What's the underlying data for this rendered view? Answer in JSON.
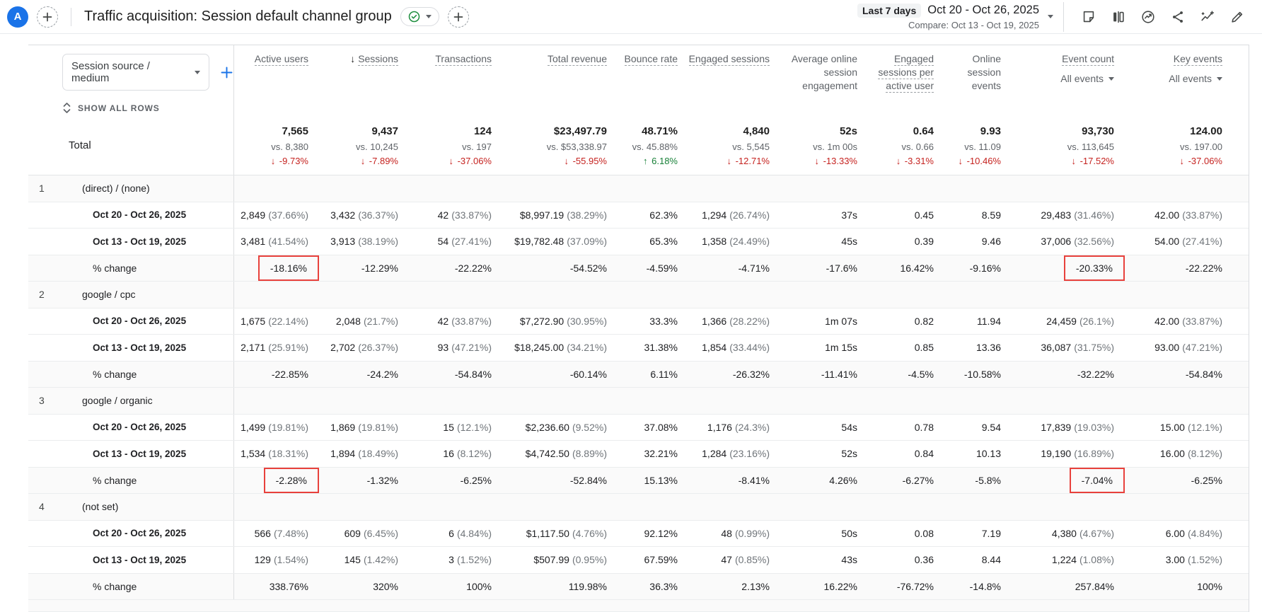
{
  "header": {
    "avatar_letter": "A",
    "title": "Traffic acquisition: Session default channel group",
    "date_range": {
      "preset": "Last 7 days",
      "primary": "Oct 20 - Oct 26, 2025",
      "compare": "Compare: Oct 13 - Oct 19, 2025"
    },
    "icons": [
      "note-icon",
      "comparisons-icon",
      "insights-icon",
      "share-icon",
      "sparkline-icon",
      "edit-icon"
    ]
  },
  "colors": {
    "accent_blue": "#1a73e8",
    "negative_red": "#c5221f",
    "positive_green": "#188038",
    "annotation_red": "#e8413c"
  },
  "controls": {
    "dimension_selector": "Session source / medium",
    "show_all_rows": "SHOW ALL ROWS"
  },
  "table": {
    "columns": [
      {
        "label": "Active users"
      },
      {
        "label": "Sessions",
        "sort": "desc"
      },
      {
        "label": "Transactions"
      },
      {
        "label": "Total revenue"
      },
      {
        "label": "Bounce rate"
      },
      {
        "label": "Engaged sessions"
      },
      {
        "label": "Average online session engagement",
        "underline": false
      },
      {
        "label": "Engaged sessions per active user"
      },
      {
        "label": "Online session events",
        "underline": false
      },
      {
        "label": "Event count",
        "filter": "All events"
      },
      {
        "label": "Key events",
        "filter": "All events"
      }
    ],
    "total_row": {
      "label": "Total",
      "metrics": [
        {
          "value": "7,565",
          "vs": "vs. 8,380",
          "change": "-9.73%",
          "trend": "down"
        },
        {
          "value": "9,437",
          "vs": "vs. 10,245",
          "change": "-7.89%",
          "trend": "down"
        },
        {
          "value": "124",
          "vs": "vs. 197",
          "change": "-37.06%",
          "trend": "down"
        },
        {
          "value": "$23,497.79",
          "vs": "vs. $53,338.97",
          "change": "-55.95%",
          "trend": "down"
        },
        {
          "value": "48.71%",
          "vs": "vs. 45.88%",
          "change": "6.18%",
          "trend": "up"
        },
        {
          "value": "4,840",
          "vs": "vs. 5,545",
          "change": "-12.71%",
          "trend": "down"
        },
        {
          "value": "52s",
          "vs": "vs. 1m 00s",
          "change": "-13.33%",
          "trend": "down"
        },
        {
          "value": "0.64",
          "vs": "vs. 0.66",
          "change": "-3.31%",
          "trend": "down"
        },
        {
          "value": "9.93",
          "vs": "vs. 11.09",
          "change": "-10.46%",
          "trend": "down"
        },
        {
          "value": "93,730",
          "vs": "vs. 113,645",
          "change": "-17.52%",
          "trend": "down"
        },
        {
          "value": "124.00",
          "vs": "vs. 197.00",
          "change": "-37.06%",
          "trend": "down"
        }
      ]
    },
    "groups": [
      {
        "index": "1",
        "name": "(direct) / (none)",
        "rows": [
          {
            "type": "period",
            "label": "Oct 20 - Oct 26, 2025",
            "values": [
              "2,849 (37.66%)",
              "3,432 (36.37%)",
              "42 (33.87%)",
              "$8,997.19 (38.29%)",
              "62.3%",
              "1,294 (26.74%)",
              "37s",
              "0.45",
              "8.59",
              "29,483 (31.46%)",
              "42.00 (33.87%)"
            ]
          },
          {
            "type": "period",
            "label": "Oct 13 - Oct 19, 2025",
            "values": [
              "3,481 (41.54%)",
              "3,913 (38.19%)",
              "54 (27.41%)",
              "$19,782.48 (37.09%)",
              "65.3%",
              "1,358 (24.49%)",
              "45s",
              "0.39",
              "9.46",
              "37,006 (32.56%)",
              "54.00 (27.41%)"
            ]
          },
          {
            "type": "change",
            "label": "% change",
            "values": [
              "-18.16%",
              "-12.29%",
              "-22.22%",
              "-54.52%",
              "-4.59%",
              "-4.71%",
              "-17.6%",
              "16.42%",
              "-9.16%",
              "-20.33%",
              "-22.22%"
            ],
            "highlighted": [
              0,
              9
            ]
          }
        ]
      },
      {
        "index": "2",
        "name": "google / cpc",
        "rows": [
          {
            "type": "period",
            "label": "Oct 20 - Oct 26, 2025",
            "values": [
              "1,675 (22.14%)",
              "2,048 (21.7%)",
              "42 (33.87%)",
              "$7,272.90 (30.95%)",
              "33.3%",
              "1,366 (28.22%)",
              "1m 07s",
              "0.82",
              "11.94",
              "24,459 (26.1%)",
              "42.00 (33.87%)"
            ]
          },
          {
            "type": "period",
            "label": "Oct 13 - Oct 19, 2025",
            "values": [
              "2,171 (25.91%)",
              "2,702 (26.37%)",
              "93 (47.21%)",
              "$18,245.00 (34.21%)",
              "31.38%",
              "1,854 (33.44%)",
              "1m 15s",
              "0.85",
              "13.36",
              "36,087 (31.75%)",
              "93.00 (47.21%)"
            ]
          },
          {
            "type": "change",
            "label": "% change",
            "values": [
              "-22.85%",
              "-24.2%",
              "-54.84%",
              "-60.14%",
              "6.11%",
              "-26.32%",
              "-11.41%",
              "-4.5%",
              "-10.58%",
              "-32.22%",
              "-54.84%"
            ],
            "highlighted": []
          }
        ]
      },
      {
        "index": "3",
        "name": "google / organic",
        "rows": [
          {
            "type": "period",
            "label": "Oct 20 - Oct 26, 2025",
            "values": [
              "1,499 (19.81%)",
              "1,869 (19.81%)",
              "15 (12.1%)",
              "$2,236.60 (9.52%)",
              "37.08%",
              "1,176 (24.3%)",
              "54s",
              "0.78",
              "9.54",
              "17,839 (19.03%)",
              "15.00 (12.1%)"
            ]
          },
          {
            "type": "period",
            "label": "Oct 13 - Oct 19, 2025",
            "values": [
              "1,534 (18.31%)",
              "1,894 (18.49%)",
              "16 (8.12%)",
              "$4,742.50 (8.89%)",
              "32.21%",
              "1,284 (23.16%)",
              "52s",
              "0.84",
              "10.13",
              "19,190 (16.89%)",
              "16.00 (8.12%)"
            ]
          },
          {
            "type": "change",
            "label": "% change",
            "values": [
              "-2.28%",
              "-1.32%",
              "-6.25%",
              "-52.84%",
              "15.13%",
              "-8.41%",
              "4.26%",
              "-6.27%",
              "-5.8%",
              "-7.04%",
              "-6.25%"
            ],
            "highlighted": [
              0,
              9
            ]
          }
        ]
      },
      {
        "index": "4",
        "name": "(not set)",
        "rows": [
          {
            "type": "period",
            "label": "Oct 20 - Oct 26, 2025",
            "values": [
              "566 (7.48%)",
              "609 (6.45%)",
              "6 (4.84%)",
              "$1,117.50 (4.76%)",
              "92.12%",
              "48 (0.99%)",
              "50s",
              "0.08",
              "7.19",
              "4,380 (4.67%)",
              "6.00 (4.84%)"
            ]
          },
          {
            "type": "period",
            "label": "Oct 13 - Oct 19, 2025",
            "values": [
              "129 (1.54%)",
              "145 (1.42%)",
              "3 (1.52%)",
              "$507.99 (0.95%)",
              "67.59%",
              "47 (0.85%)",
              "43s",
              "0.36",
              "8.44",
              "1,224 (1.08%)",
              "3.00 (1.52%)"
            ]
          },
          {
            "type": "change",
            "label": "% change",
            "values": [
              "338.76%",
              "320%",
              "100%",
              "119.98%",
              "36.3%",
              "2.13%",
              "16.22%",
              "-76.72%",
              "-14.8%",
              "257.84%",
              "100%"
            ],
            "highlighted": []
          }
        ]
      }
    ]
  }
}
